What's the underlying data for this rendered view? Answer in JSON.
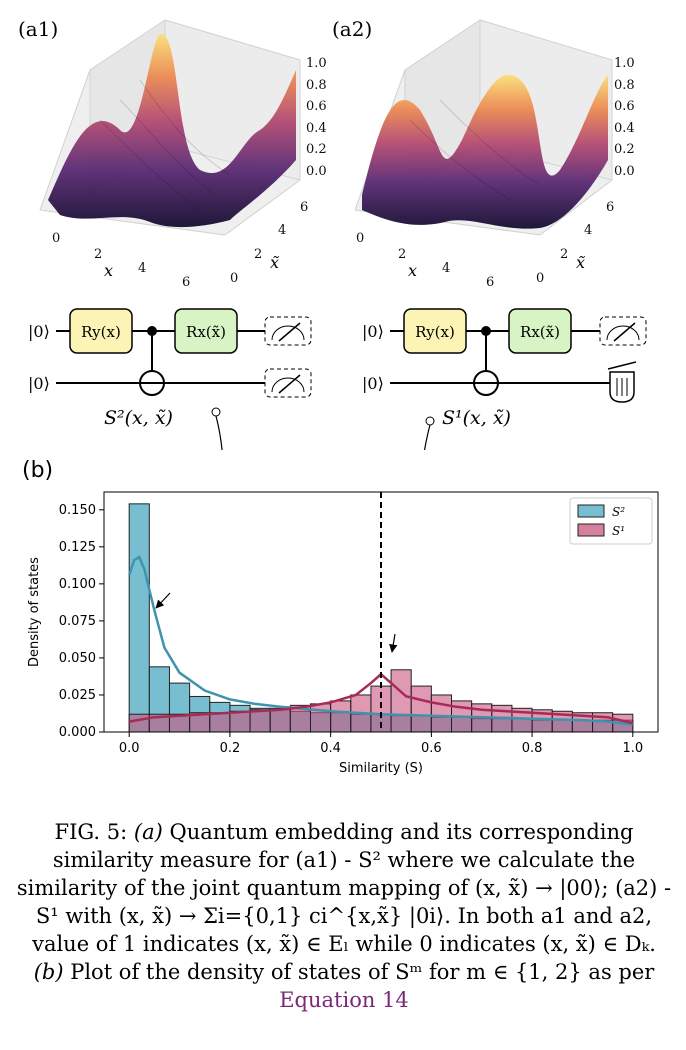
{
  "panels": {
    "a1": {
      "label": "(a1)",
      "z_ticks": [
        "1.0",
        "0.8",
        "0.6",
        "0.4",
        "0.2",
        "0.0"
      ],
      "x_ticks": [
        "0",
        "2",
        "4",
        "6"
      ],
      "y_ticks": [
        "0",
        "2",
        "4",
        "6"
      ],
      "x_label": "x",
      "y_label": "x̃",
      "circuit_label": "S²(x, x̃)",
      "gate1": "Ry(x)",
      "gate2": "Rx(x̃)",
      "ket": "|0⟩"
    },
    "a2": {
      "label": "(a2)",
      "z_ticks": [
        "1.0",
        "0.8",
        "0.6",
        "0.4",
        "0.2",
        "0.0"
      ],
      "x_ticks": [
        "0",
        "2",
        "4",
        "6"
      ],
      "y_ticks": [
        "0",
        "2",
        "4",
        "6"
      ],
      "x_label": "x",
      "y_label": "x̃",
      "circuit_label": "S¹(x, x̃)",
      "gate1": "Ry(x)",
      "gate2": "Rx(x̃)",
      "ket": "|0⟩"
    },
    "b": {
      "label": "(b)"
    }
  },
  "chart_data": {
    "type": "bar",
    "xlabel": "Similarity (S)",
    "ylabel": "Density of states",
    "xlim": [
      -0.05,
      1.05
    ],
    "ylim": [
      0,
      0.162
    ],
    "x_ticks": [
      0.0,
      0.2,
      0.4,
      0.6,
      0.8,
      1.0
    ],
    "x_tick_labels": [
      "0.0",
      "0.2",
      "0.4",
      "0.6",
      "0.8",
      "1.0"
    ],
    "y_ticks": [
      0.0,
      0.025,
      0.05,
      0.075,
      0.1,
      0.125,
      0.15
    ],
    "y_tick_labels": [
      "0.000",
      "0.025",
      "0.050",
      "0.075",
      "0.100",
      "0.125",
      "0.150"
    ],
    "bin_edges": [
      0.0,
      0.04,
      0.08,
      0.12,
      0.16,
      0.2,
      0.24,
      0.28,
      0.32,
      0.36,
      0.4,
      0.44,
      0.48,
      0.52,
      0.56,
      0.6,
      0.64,
      0.68,
      0.72,
      0.76,
      0.8,
      0.84,
      0.88,
      0.92,
      0.96,
      1.0
    ],
    "legend_position": "top-right",
    "vline_x": 0.5,
    "series": [
      {
        "name": "S²",
        "color": "#5fb3c8",
        "values": [
          0.154,
          0.044,
          0.033,
          0.024,
          0.02,
          0.018,
          0.016,
          0.015,
          0.014,
          0.013,
          0.013,
          0.012,
          0.012,
          0.011,
          0.011,
          0.01,
          0.01,
          0.009,
          0.009,
          0.009,
          0.008,
          0.008,
          0.008,
          0.008,
          0.008
        ],
        "kde_x": [
          0.0,
          0.01,
          0.02,
          0.03,
          0.05,
          0.07,
          0.1,
          0.15,
          0.2,
          0.25,
          0.3,
          0.4,
          0.5,
          0.6,
          0.7,
          0.8,
          0.9,
          0.95,
          1.0
        ],
        "kde_y": [
          0.106,
          0.116,
          0.118,
          0.11,
          0.082,
          0.057,
          0.04,
          0.028,
          0.022,
          0.019,
          0.017,
          0.014,
          0.012,
          0.011,
          0.01,
          0.009,
          0.008,
          0.007,
          0.005
        ]
      },
      {
        "name": "S¹",
        "color": "#c9557e",
        "values": [
          0.012,
          0.012,
          0.012,
          0.013,
          0.013,
          0.014,
          0.015,
          0.016,
          0.018,
          0.019,
          0.021,
          0.025,
          0.031,
          0.042,
          0.031,
          0.025,
          0.021,
          0.019,
          0.018,
          0.016,
          0.015,
          0.014,
          0.013,
          0.013,
          0.012
        ],
        "kde_x": [
          0.0,
          0.05,
          0.1,
          0.15,
          0.2,
          0.25,
          0.3,
          0.35,
          0.4,
          0.45,
          0.48,
          0.5,
          0.52,
          0.55,
          0.6,
          0.65,
          0.7,
          0.75,
          0.8,
          0.85,
          0.9,
          0.95,
          1.0
        ],
        "kde_y": [
          0.007,
          0.01,
          0.011,
          0.012,
          0.013,
          0.014,
          0.015,
          0.017,
          0.02,
          0.025,
          0.033,
          0.039,
          0.033,
          0.024,
          0.02,
          0.017,
          0.015,
          0.014,
          0.013,
          0.012,
          0.011,
          0.01,
          0.006
        ]
      }
    ]
  },
  "caption": {
    "fig": "FIG. 5:",
    "a": "(a)",
    "t1": " Quantum embedding and its corresponding similarity measure for (a1) - S² where we calculate the similarity of the joint quantum mapping of (x, x̃) → |00⟩; (a2) - S¹ with (x, x̃) → Σi={0,1} ci^{x,x̃} |0i⟩. In both a1 and a2, value of 1 indicates (x, x̃) ∈ Eₗ while 0 indicates (x, x̃) ∈ Dₖ. ",
    "b": "(b)",
    "t2": " Plot of the density of states of Sᵐ for m ∈ {1, 2} as per ",
    "ref": "Equation 14"
  }
}
